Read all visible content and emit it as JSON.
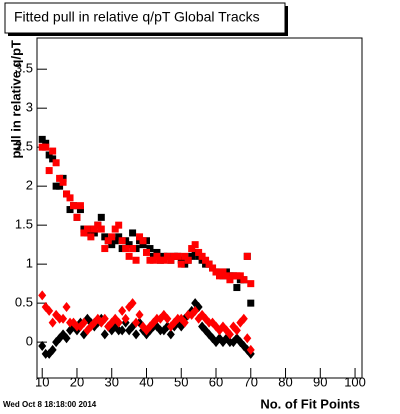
{
  "chart_data": {
    "type": "scatter",
    "title": "Fitted pull in relative q/pT  Global Tracks",
    "ylabel": "pull in relative q/pT",
    "xlabel": "No. of Fit Points",
    "footer": "Wed Oct  8 18:18:00 2014",
    "x": [
      10,
      11,
      12,
      13,
      14,
      15,
      16,
      17,
      18,
      19,
      20,
      21,
      22,
      23,
      24,
      25,
      26,
      27,
      28,
      29,
      30,
      31,
      32,
      33,
      34,
      35,
      36,
      37,
      38,
      39,
      40,
      41,
      42,
      43,
      44,
      45,
      46,
      47,
      48,
      49,
      50,
      51,
      52,
      53,
      54,
      55,
      56,
      57,
      58,
      59,
      60,
      61,
      62,
      63,
      64,
      65,
      66,
      67,
      68,
      69,
      70
    ],
    "series": [
      {
        "color": "#000000",
        "marker": "square",
        "values": [
          2.6,
          2.55,
          2.4,
          2.35,
          2.0,
          2.0,
          2.1,
          1.9,
          1.7,
          1.75,
          1.6,
          1.7,
          1.45,
          1.4,
          1.45,
          1.4,
          1.5,
          1.6,
          1.35,
          1.3,
          1.25,
          1.3,
          1.35,
          1.2,
          1.3,
          1.25,
          1.4,
          1.2,
          1.3,
          1.25,
          1.3,
          1.2,
          1.1,
          1.15,
          1.05,
          1.1,
          1.1,
          1.05,
          1.1,
          1.1,
          1.05,
          1.0,
          1.05,
          1.1,
          1.15,
          1.1,
          1.05,
          1.0,
          1.0,
          0.95,
          0.9,
          0.9,
          0.85,
          0.9,
          0.85,
          0.85,
          0.7,
          0.8,
          0.8,
          1.1,
          0.5
        ]
      },
      {
        "color": "#ff0000",
        "marker": "square",
        "values": [
          2.5,
          2.5,
          2.2,
          2.45,
          2.3,
          2.1,
          2.05,
          1.9,
          1.85,
          1.75,
          1.6,
          1.75,
          1.4,
          1.45,
          1.35,
          1.45,
          1.5,
          1.45,
          1.2,
          1.3,
          1.35,
          1.45,
          1.5,
          1.3,
          1.2,
          1.1,
          1.2,
          1.05,
          1.35,
          1.3,
          1.15,
          1.05,
          1.05,
          1.1,
          1.05,
          1.05,
          1.1,
          1.05,
          1.1,
          1.1,
          1.0,
          1.1,
          1.05,
          1.2,
          1.25,
          1.15,
          1.1,
          1.05,
          1.0,
          0.95,
          0.9,
          0.85,
          0.9,
          0.85,
          0.8,
          0.85,
          0.85,
          0.85,
          0.8,
          1.1,
          0.75
        ]
      },
      {
        "color": "#000000",
        "marker": "diamond",
        "values": [
          -0.05,
          -0.15,
          -0.15,
          -0.1,
          0.0,
          0.05,
          0.1,
          0.05,
          0.15,
          0.2,
          0.15,
          0.25,
          0.1,
          0.3,
          0.25,
          0.2,
          0.25,
          0.3,
          0.1,
          0.2,
          0.15,
          0.2,
          0.15,
          0.15,
          0.25,
          0.15,
          0.2,
          0.1,
          0.25,
          0.15,
          0.1,
          0.15,
          0.2,
          0.2,
          0.15,
          0.15,
          0.2,
          0.1,
          0.2,
          0.25,
          0.2,
          0.3,
          0.35,
          0.4,
          0.5,
          0.45,
          0.2,
          0.15,
          0.1,
          0.05,
          0.0,
          0.05,
          0.0,
          0.05,
          0.0,
          0.0,
          0.05,
          0.0,
          -0.05,
          -0.1,
          -0.15
        ]
      },
      {
        "color": "#ff0000",
        "marker": "diamond",
        "values": [
          0.6,
          0.45,
          0.4,
          0.25,
          0.35,
          0.3,
          0.3,
          0.45,
          0.25,
          0.25,
          0.2,
          0.2,
          0.25,
          0.15,
          0.2,
          0.25,
          0.3,
          0.25,
          0.3,
          0.2,
          0.25,
          0.3,
          0.25,
          0.4,
          0.3,
          0.45,
          0.5,
          0.25,
          0.35,
          0.2,
          0.15,
          0.2,
          0.25,
          0.3,
          0.3,
          0.35,
          0.3,
          0.2,
          0.25,
          0.3,
          0.3,
          0.25,
          0.35,
          0.35,
          0.4,
          0.3,
          0.35,
          0.3,
          0.25,
          0.25,
          0.2,
          0.15,
          0.2,
          0.15,
          0.1,
          0.2,
          0.15,
          0.25,
          0.3,
          0.05,
          -0.1
        ]
      }
    ],
    "xlim": [
      8.5,
      102
    ],
    "ylim": [
      -0.46,
      3.9
    ],
    "xticks": [
      10,
      20,
      30,
      40,
      50,
      60,
      70,
      80,
      90,
      100
    ],
    "yticks": [
      0,
      0.5,
      1,
      1.5,
      2,
      2.5,
      3,
      3.5
    ]
  }
}
